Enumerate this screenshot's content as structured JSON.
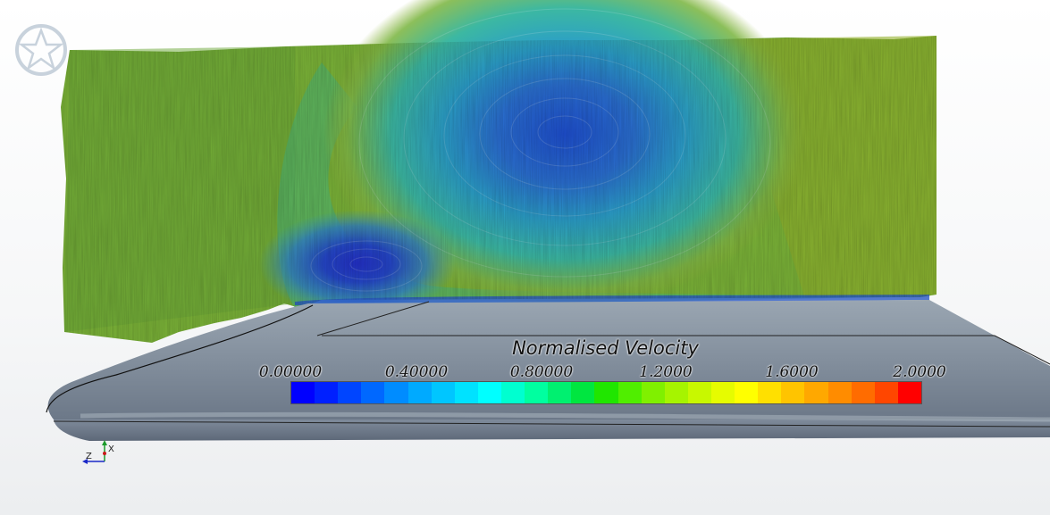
{
  "legend": {
    "title": "Normalised Velocity",
    "ticks": [
      "0.00000",
      "0.40000",
      "0.80000",
      "1.2000",
      "1.6000",
      "2.0000"
    ],
    "range": [
      0,
      2
    ],
    "colors": [
      "#0000ff",
      "#0020ff",
      "#0045ff",
      "#0068ff",
      "#008cff",
      "#00aaff",
      "#00c6ff",
      "#00e2ff",
      "#00ffff",
      "#00ffd0",
      "#00ffa0",
      "#00f070",
      "#00e640",
      "#20e600",
      "#50ee00",
      "#80f000",
      "#a6f400",
      "#c8f800",
      "#e6fc00",
      "#ffff00",
      "#ffe000",
      "#ffc400",
      "#ffa800",
      "#ff8c00",
      "#ff6c00",
      "#ff4600",
      "#ff0000"
    ]
  },
  "axes": {
    "x": "X",
    "z": "Z"
  },
  "logo": "star-logo-icon"
}
